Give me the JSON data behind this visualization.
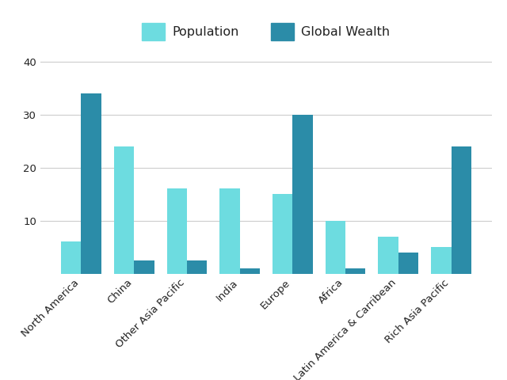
{
  "categories": [
    "North America",
    "China",
    "Other Asia Pacific",
    "India",
    "Europe",
    "Africa",
    "Latin America & Carribean",
    "Rich Asia Pacific"
  ],
  "population": [
    6,
    24,
    16,
    16,
    15,
    10,
    7,
    5
  ],
  "global_wealth": [
    34,
    2.5,
    2.5,
    1,
    30,
    1,
    4,
    24
  ],
  "population_color": "#6DDCE0",
  "wealth_color": "#2B8CA8",
  "bar_width": 0.38,
  "ylim": [
    0,
    43
  ],
  "yticks": [
    0,
    10,
    20,
    30,
    40
  ],
  "legend_labels": [
    "Population",
    "Global Wealth"
  ],
  "background_color": "#ffffff",
  "grid_color": "#cccccc",
  "tick_label_fontsize": 9.5,
  "legend_fontsize": 11.5,
  "title_color": "#222222"
}
